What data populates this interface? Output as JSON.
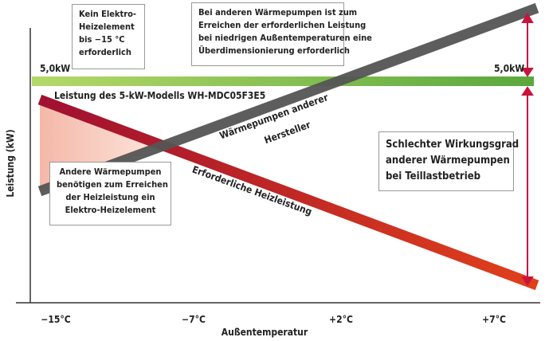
{
  "axis": {
    "y_label": "Leistung (kW)",
    "x_label": "Außentemperatur",
    "x_ticks": [
      "−15°C",
      "−7°C",
      "+2°C",
      "+7°C"
    ]
  },
  "bar": {
    "left_label": "5,0kW",
    "right_label": "5,0kW",
    "caption": "Leistung des 5-kW-Modells WH-MDC05F3E5"
  },
  "lines": {
    "gray_label": [
      "Wärmepumpen anderer",
      "Hersteller"
    ],
    "red_label": "Erforderliche Heizleistung"
  },
  "callouts": [
    {
      "lines": [
        "Kein Elektro-",
        "Heizelement",
        "bis −15 °C",
        "erforderlich"
      ]
    },
    {
      "lines": [
        "Bei anderen Wärmepumpen ist zum",
        "Erreichen der erforderlichen Leistung",
        "bei niedrigen Außentemperaturen eine",
        "Überdimensionierung erforderlich"
      ]
    },
    {
      "lines": [
        "Andere Wärmepumpen",
        "benötigen zum Erreichen",
        "der Heizleistung ein",
        "Elektro-Heizelement"
      ]
    },
    {
      "lines": [
        "Schlechter Wirkungsgrad",
        "anderer Wärmepumpen",
        "bei Teillastbetrieb"
      ]
    }
  ]
}
